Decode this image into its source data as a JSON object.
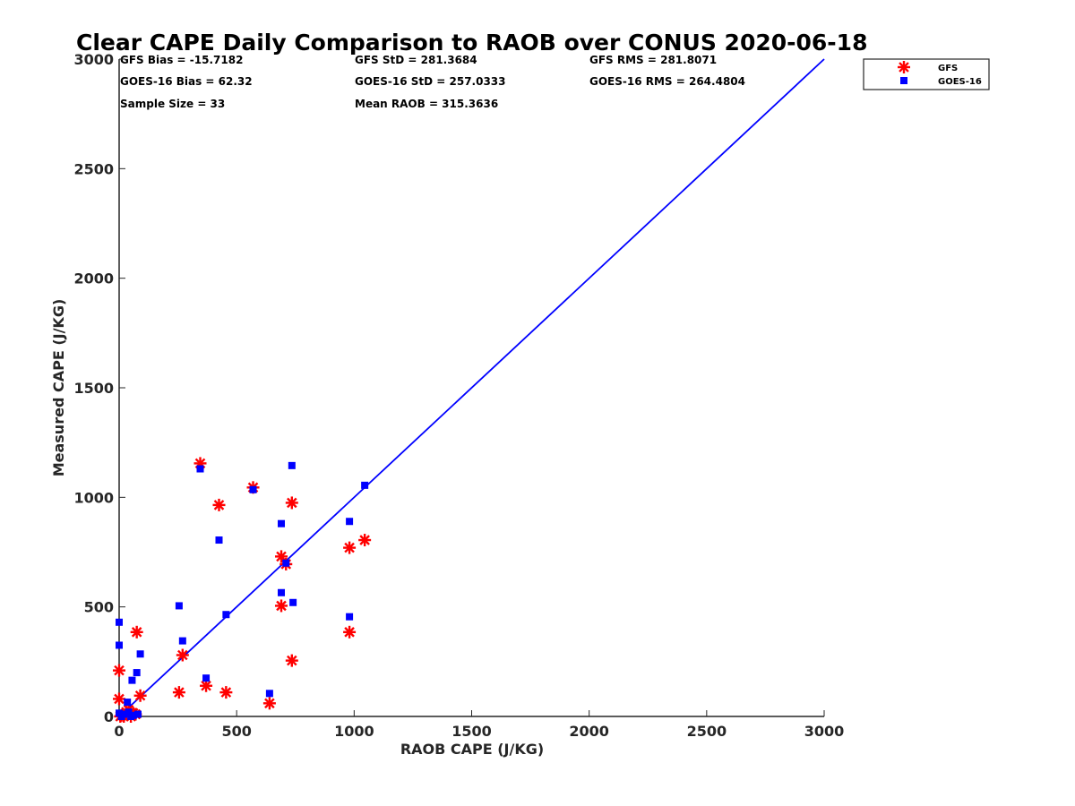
{
  "chart_data": {
    "type": "scatter",
    "title": "Clear CAPE Daily Comparison to RAOB over CONUS 2020-06-18",
    "xlabel": "RAOB CAPE (J/KG)",
    "ylabel": "Measured CAPE (J/KG)",
    "xlim": [
      0,
      3000
    ],
    "ylim": [
      0,
      3000
    ],
    "xticks": [
      "0",
      "500",
      "1000",
      "1500",
      "2000",
      "2500",
      "3000"
    ],
    "yticks": [
      "0",
      "500",
      "1000",
      "1500",
      "2000",
      "2500",
      "3000"
    ],
    "grid": false,
    "legend_position": "top-right",
    "colors": {
      "gfs": "#ff0000",
      "goes16": "#0000ff",
      "line": "#0000ff"
    },
    "stats": [
      "GFS Bias = -15.7182",
      "GOES-16 Bias = 62.32",
      "Sample Size = 33",
      "GFS StD = 281.3684",
      "GOES-16 StD = 257.0333",
      "Mean RAOB = 315.3636",
      "GFS RMS = 281.8071",
      "GOES-16 RMS = 264.4804"
    ],
    "reference_line": {
      "x": [
        0,
        3000
      ],
      "y": [
        0,
        3000
      ]
    },
    "series": [
      {
        "name": "GFS",
        "marker": "asterisk",
        "points": [
          [
            345,
            1155
          ],
          [
            570,
            1045
          ],
          [
            425,
            965
          ],
          [
            735,
            975
          ],
          [
            690,
            730
          ],
          [
            710,
            695
          ],
          [
            1045,
            805
          ],
          [
            980,
            770
          ],
          [
            690,
            505
          ],
          [
            980,
            385
          ],
          [
            735,
            255
          ],
          [
            75,
            385
          ],
          [
            270,
            280
          ],
          [
            0,
            210
          ],
          [
            255,
            110
          ],
          [
            370,
            140
          ],
          [
            455,
            110
          ],
          [
            640,
            60
          ],
          [
            90,
            95
          ],
          [
            0,
            80
          ],
          [
            40,
            30
          ],
          [
            60,
            15
          ],
          [
            10,
            5
          ],
          [
            20,
            0
          ],
          [
            50,
            0
          ],
          [
            70,
            10
          ],
          [
            30,
            20
          ],
          [
            5,
            0
          ]
        ]
      },
      {
        "name": "GOES-16",
        "marker": "square",
        "points": [
          [
            345,
            1130
          ],
          [
            735,
            1145
          ],
          [
            570,
            1035
          ],
          [
            1045,
            1055
          ],
          [
            690,
            880
          ],
          [
            980,
            890
          ],
          [
            425,
            805
          ],
          [
            710,
            700
          ],
          [
            690,
            565
          ],
          [
            740,
            520
          ],
          [
            255,
            505
          ],
          [
            455,
            465
          ],
          [
            980,
            455
          ],
          [
            0,
            430
          ],
          [
            0,
            325
          ],
          [
            270,
            345
          ],
          [
            90,
            285
          ],
          [
            75,
            200
          ],
          [
            55,
            165
          ],
          [
            370,
            175
          ],
          [
            640,
            105
          ],
          [
            35,
            65
          ],
          [
            0,
            15
          ],
          [
            20,
            10
          ],
          [
            40,
            20
          ],
          [
            60,
            5
          ],
          [
            10,
            0
          ],
          [
            50,
            0
          ],
          [
            80,
            10
          ]
        ]
      }
    ]
  }
}
